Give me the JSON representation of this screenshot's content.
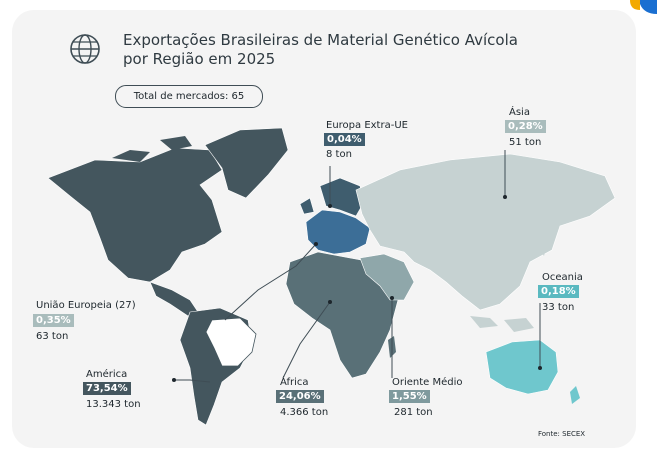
{
  "title": "Exportações Brasileiras de Material Genético Avícola por Região em 2025",
  "title_line1": "Exportações Brasileiras de Material Genético Avícola",
  "title_line2": "por Região em 2025",
  "total_markets": "Total de mercados: 65",
  "source": "Fonte: SECEX",
  "icon": "globe-icon",
  "colors": {
    "america": "#44565e",
    "africa": "#597077",
    "europe_extra": "#3f5d6e",
    "asia": "#c6d2d2",
    "oceania": "#6fc7cd",
    "middle_east": "#8fa7aa",
    "eu": "#3c6e97",
    "brazil": "#ffffff"
  },
  "regions": [
    {
      "key": "europa_extra",
      "name": "Europa Extra-UE",
      "share": "0,04%",
      "volume": "8 ton",
      "badge_color": "#3f5d6e"
    },
    {
      "key": "asia",
      "name": "Ásia",
      "share": "0,28%",
      "volume": "51 ton",
      "badge_color": "#a9bcbc"
    },
    {
      "key": "oceania",
      "name": "Oceania",
      "share": "0,18%",
      "volume": "33 ton",
      "badge_color": "#5ab9c0"
    },
    {
      "key": "ue",
      "name": "União Europeia (27)",
      "share": "0,35%",
      "volume": "63 ton",
      "badge_color": "#a9bcbc"
    },
    {
      "key": "america",
      "name": "América",
      "share": "73,54%",
      "volume": "13.343 ton",
      "badge_color": "#44565e"
    },
    {
      "key": "africa",
      "name": "África",
      "share": "24,06%",
      "volume": "4.366 ton",
      "badge_color": "#597077"
    },
    {
      "key": "oriente",
      "name": "Oriente Médio",
      "share": "1,55%",
      "volume": "281 ton",
      "badge_color": "#7f9a9e"
    }
  ]
}
